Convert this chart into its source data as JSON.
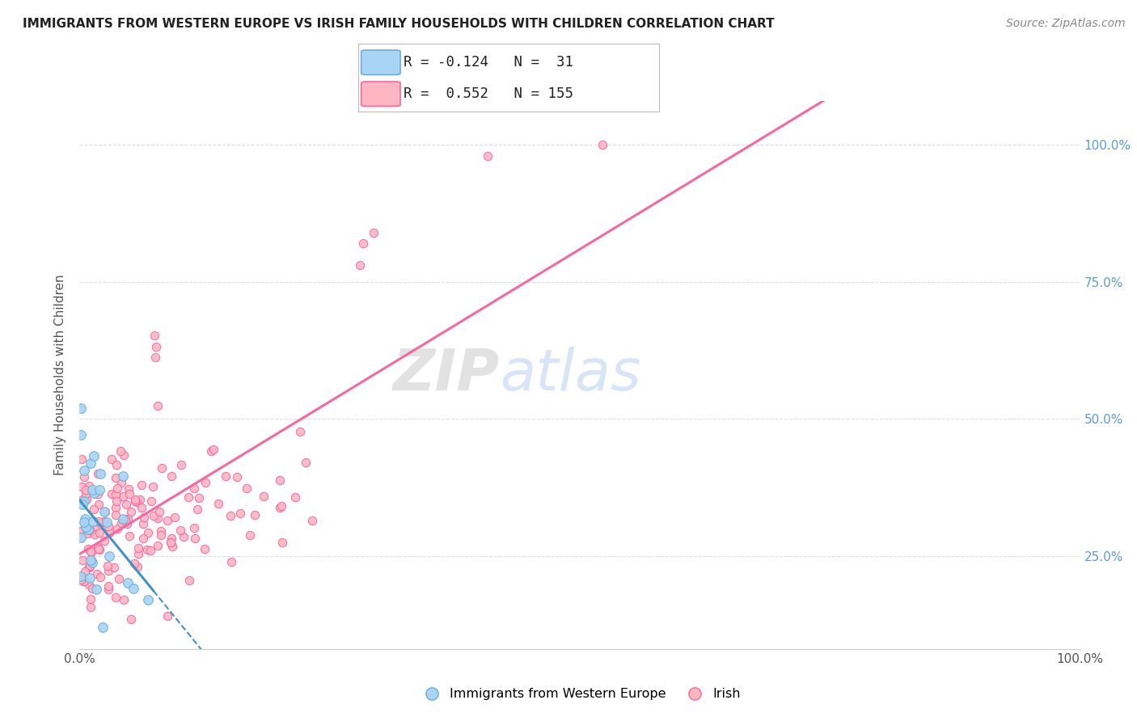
{
  "title": "IMMIGRANTS FROM WESTERN EUROPE VS IRISH FAMILY HOUSEHOLDS WITH CHILDREN CORRELATION CHART",
  "source": "Source: ZipAtlas.com",
  "ylabel": "Family Households with Children",
  "legend1_label": "Immigrants from Western Europe",
  "legend2_label": "Irish",
  "R1": -0.124,
  "N1": 31,
  "R2": 0.552,
  "N2": 155,
  "color_blue_fill": "#a8d4f5",
  "color_blue_edge": "#6baed6",
  "color_pink_fill": "#ffb6c1",
  "color_pink_edge": "#f768a1",
  "color_line_blue": "#4292c6",
  "color_line_pink": "#f768a1",
  "watermark_zip": "ZIP",
  "watermark_atlas": "atlas",
  "background_color": "#ffffff",
  "xlim": [
    0.0,
    1.0
  ],
  "ylim": [
    0.08,
    1.08
  ],
  "ytick_vals": [
    0.25,
    0.5,
    0.75,
    1.0
  ],
  "ytick_labels": [
    "25.0%",
    "50.0%",
    "75.0%",
    "100.0%"
  ],
  "grid_color": "#dddddd",
  "title_fontsize": 11,
  "source_fontsize": 10,
  "tick_fontsize": 11,
  "ylabel_fontsize": 11
}
